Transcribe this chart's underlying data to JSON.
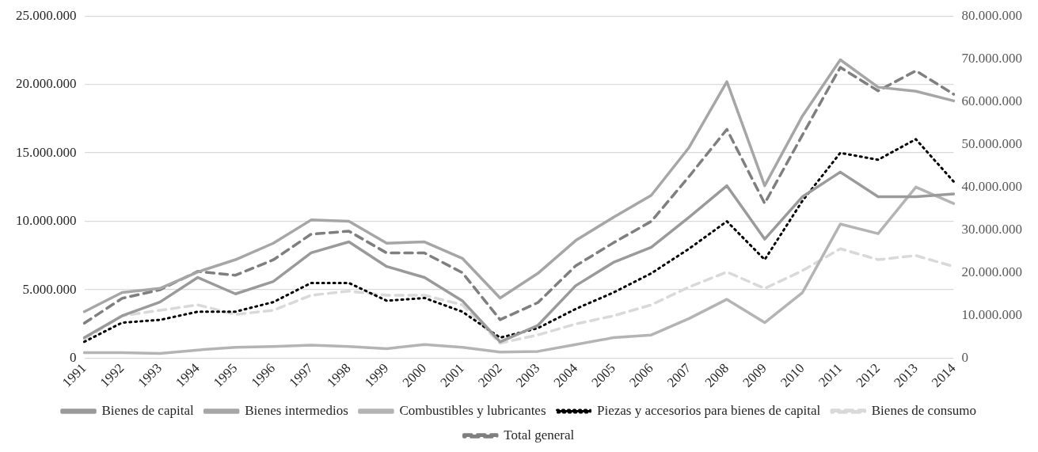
{
  "chart_data": {
    "type": "line",
    "categories": [
      "1991",
      "1992",
      "1993",
      "1994",
      "1995",
      "1996",
      "1997",
      "1998",
      "1999",
      "2000",
      "2001",
      "2002",
      "2003",
      "2004",
      "2005",
      "2006",
      "2007",
      "2008",
      "2009",
      "2010",
      "2011",
      "2012",
      "2013",
      "2014"
    ],
    "series": [
      {
        "name": "Bienes de capital",
        "color": "#9a9a9a",
        "line_style": "solid",
        "values": [
          1500000,
          3100000,
          4100000,
          5900000,
          4700000,
          5600000,
          7700000,
          8500000,
          6700000,
          5900000,
          4200000,
          1200000,
          2400000,
          5300000,
          7000000,
          8100000,
          10300000,
          12600000,
          8700000,
          11800000,
          13600000,
          11800000,
          11800000,
          12000000
        ]
      },
      {
        "name": "Bienes intermedios",
        "color": "#a6a6a6",
        "line_style": "solid",
        "values": [
          3400000,
          4800000,
          5100000,
          6300000,
          7200000,
          8400000,
          10100000,
          10000000,
          8400000,
          8500000,
          7300000,
          4400000,
          6200000,
          8600000,
          10300000,
          11900000,
          15400000,
          20200000,
          12600000,
          17700000,
          21800000,
          19800000,
          19500000,
          18800000
        ]
      },
      {
        "name": "Combustibles y lubricantes",
        "color": "#b4b4b4",
        "line_style": "solid",
        "values": [
          400000,
          400000,
          350000,
          600000,
          800000,
          850000,
          950000,
          850000,
          700000,
          1000000,
          800000,
          450000,
          500000,
          1000000,
          1500000,
          1700000,
          2900000,
          4300000,
          2600000,
          4800000,
          9800000,
          9100000,
          12500000,
          11300000
        ]
      },
      {
        "name": "Piezas y accesorios para bienes de capital",
        "color": "#000000",
        "line_style": "dotted",
        "values": [
          1200000,
          2600000,
          2800000,
          3400000,
          3400000,
          4100000,
          5500000,
          5500000,
          4200000,
          4400000,
          3400000,
          1500000,
          2200000,
          3600000,
          4800000,
          6200000,
          8000000,
          10000000,
          7200000,
          11500000,
          15000000,
          14500000,
          16000000,
          12900000
        ]
      },
      {
        "name": "Bienes de consumo",
        "color": "#d9d9d9",
        "line_style": "dashed",
        "values": [
          1400000,
          3100000,
          3500000,
          3900000,
          3200000,
          3500000,
          4600000,
          4900000,
          4600000,
          4600000,
          3900000,
          1100000,
          1700000,
          2500000,
          3100000,
          3900000,
          5200000,
          6300000,
          5100000,
          6400000,
          8000000,
          7200000,
          7500000,
          6700000
        ]
      },
      {
        "name": "Total general",
        "color": "#7f7f7f",
        "line_style": "dashed",
        "axis": "y2",
        "values": [
          8200000,
          14000000,
          16000000,
          20300000,
          19400000,
          23000000,
          29000000,
          29700000,
          24600000,
          24600000,
          20000000,
          9000000,
          13000000,
          21600000,
          27000000,
          32000000,
          42500000,
          53500000,
          36200000,
          52200000,
          68000000,
          62500000,
          67200000,
          61700000
        ]
      }
    ],
    "ylim": [
      0,
      25000000
    ],
    "yticks": [
      {
        "value": 0,
        "label": "0"
      },
      {
        "value": 5000000,
        "label": "5.000.000"
      },
      {
        "value": 10000000,
        "label": "10.000.000"
      },
      {
        "value": 15000000,
        "label": "15.000.000"
      },
      {
        "value": 20000000,
        "label": "20.000.000"
      },
      {
        "value": 25000000,
        "label": "25.000.000"
      }
    ],
    "y2lim": [
      0,
      80000000
    ],
    "y2ticks": [
      {
        "value": 0,
        "label": "0"
      },
      {
        "value": 10000000,
        "label": "10.000.000"
      },
      {
        "value": 20000000,
        "label": "20.000.000"
      },
      {
        "value": 30000000,
        "label": "30.000.000"
      },
      {
        "value": 40000000,
        "label": "40.000.000"
      },
      {
        "value": 50000000,
        "label": "50.000.000"
      },
      {
        "value": 60000000,
        "label": "60.000.000"
      },
      {
        "value": 70000000,
        "label": "70.000.000"
      },
      {
        "value": 80000000,
        "label": "80.000.000"
      }
    ],
    "grid": "y",
    "legend": "bottom",
    "marker": "none"
  }
}
